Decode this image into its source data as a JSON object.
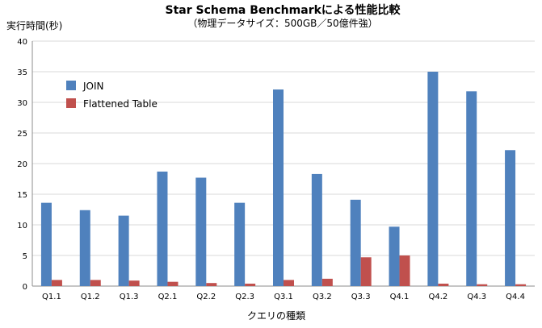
{
  "chart_data": {
    "type": "bar",
    "title": "Star Schema Benchmarkによる性能比較",
    "subtitle": "（物理データサイズ：500GB／50億件強）",
    "xlabel": "クエリの種類",
    "ylabel": "実行時間(秒)",
    "ylim": [
      0,
      40
    ],
    "yticks": [
      0,
      5,
      10,
      15,
      20,
      25,
      30,
      35,
      40
    ],
    "grid": true,
    "legend_position": "top-left",
    "categories": [
      "Q1.1",
      "Q1.2",
      "Q1.3",
      "Q2.1",
      "Q2.2",
      "Q2.3",
      "Q3.1",
      "Q3.2",
      "Q3.3",
      "Q4.1",
      "Q4.2",
      "Q4.3",
      "Q4.4"
    ],
    "series": [
      {
        "name": "JOIN",
        "color": "#4f81bd",
        "values": [
          13.6,
          12.4,
          11.5,
          18.7,
          17.7,
          13.6,
          32.1,
          18.3,
          14.1,
          9.7,
          35.0,
          31.8,
          22.2
        ]
      },
      {
        "name": "Flattened Table",
        "color": "#c0504d",
        "values": [
          1.0,
          1.0,
          0.9,
          0.7,
          0.5,
          0.4,
          1.0,
          1.2,
          4.7,
          5.0,
          0.4,
          0.3,
          0.3
        ]
      }
    ]
  }
}
